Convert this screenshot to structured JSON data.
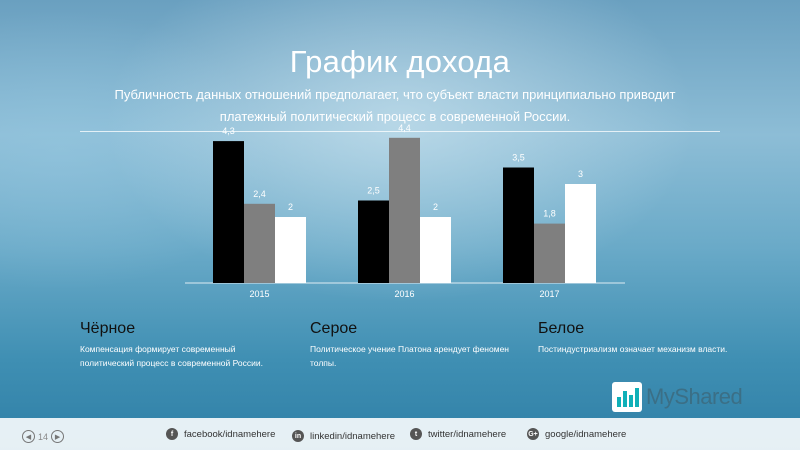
{
  "header": {
    "title": "График дохода",
    "subtitle": "Публичность данных отношений предполагает, что субъект власти принципиально приводит платежный политический процесс в современной России."
  },
  "chart_data": {
    "type": "bar",
    "categories": [
      "2015",
      "2016",
      "2017"
    ],
    "series": [
      {
        "values": [
          4.3,
          2.5,
          3.5
        ],
        "labels": [
          "4,3",
          "2,5",
          "3,5"
        ],
        "color": "#000000"
      },
      {
        "values": [
          2.4,
          4.4,
          1.8
        ],
        "labels": [
          "2,4",
          "4,4",
          "1,8"
        ],
        "color": "#7f7f7f"
      },
      {
        "values": [
          2,
          2,
          3
        ],
        "labels": [
          "2",
          "2",
          "3"
        ],
        "color": "#ffffff"
      }
    ],
    "ylim": [
      0,
      5
    ],
    "grid": false
  },
  "columns": [
    {
      "heading": "Чёрное",
      "text": "Компенсация формирует современный политический процесс в современной России."
    },
    {
      "heading": "Серое",
      "text": "Политическое учение Платона арендует феномен толпы."
    },
    {
      "heading": "Белое",
      "text": "Постиндустриализм означает механизм власти."
    }
  ],
  "footer": {
    "page_number": "14",
    "social": [
      {
        "icon": "facebook-icon",
        "glyph": "f",
        "label": "facebook/idnamehere"
      },
      {
        "icon": "linkedin-icon",
        "glyph": "in",
        "label": "linkedin/idnamehere"
      },
      {
        "icon": "twitter-icon",
        "glyph": "t",
        "label": "twitter/idnamehere"
      },
      {
        "icon": "google-icon",
        "glyph": "G+",
        "label": "google/idnamehere"
      }
    ],
    "logo_text": "MyShared"
  }
}
